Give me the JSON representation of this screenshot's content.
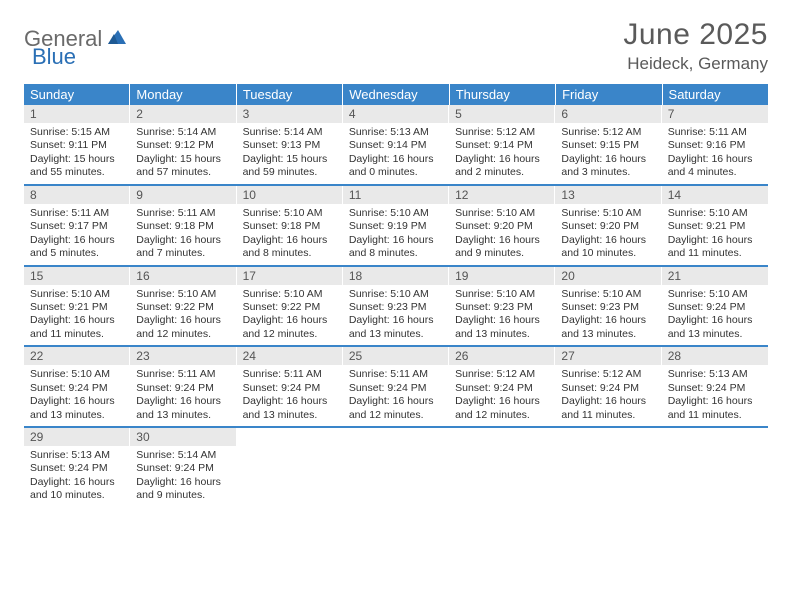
{
  "logo": {
    "text_left": "General",
    "text_right": "Blue"
  },
  "title": "June 2025",
  "location": "Heideck, Germany",
  "colors": {
    "header_bg": "#3a85c9",
    "daynum_bg": "#e9e9e9",
    "text_muted": "#5a5a5a",
    "logo_gray": "#6a6a6a",
    "logo_blue": "#2a6fb5"
  },
  "day_headers": [
    "Sunday",
    "Monday",
    "Tuesday",
    "Wednesday",
    "Thursday",
    "Friday",
    "Saturday"
  ],
  "weeks": [
    [
      {
        "n": "1",
        "sr": "5:15 AM",
        "ss": "9:11 PM",
        "dh": "15",
        "dm": "55"
      },
      {
        "n": "2",
        "sr": "5:14 AM",
        "ss": "9:12 PM",
        "dh": "15",
        "dm": "57"
      },
      {
        "n": "3",
        "sr": "5:14 AM",
        "ss": "9:13 PM",
        "dh": "15",
        "dm": "59"
      },
      {
        "n": "4",
        "sr": "5:13 AM",
        "ss": "9:14 PM",
        "dh": "16",
        "dm": "0"
      },
      {
        "n": "5",
        "sr": "5:12 AM",
        "ss": "9:14 PM",
        "dh": "16",
        "dm": "2"
      },
      {
        "n": "6",
        "sr": "5:12 AM",
        "ss": "9:15 PM",
        "dh": "16",
        "dm": "3"
      },
      {
        "n": "7",
        "sr": "5:11 AM",
        "ss": "9:16 PM",
        "dh": "16",
        "dm": "4"
      }
    ],
    [
      {
        "n": "8",
        "sr": "5:11 AM",
        "ss": "9:17 PM",
        "dh": "16",
        "dm": "5"
      },
      {
        "n": "9",
        "sr": "5:11 AM",
        "ss": "9:18 PM",
        "dh": "16",
        "dm": "7"
      },
      {
        "n": "10",
        "sr": "5:10 AM",
        "ss": "9:18 PM",
        "dh": "16",
        "dm": "8"
      },
      {
        "n": "11",
        "sr": "5:10 AM",
        "ss": "9:19 PM",
        "dh": "16",
        "dm": "8"
      },
      {
        "n": "12",
        "sr": "5:10 AM",
        "ss": "9:20 PM",
        "dh": "16",
        "dm": "9"
      },
      {
        "n": "13",
        "sr": "5:10 AM",
        "ss": "9:20 PM",
        "dh": "16",
        "dm": "10"
      },
      {
        "n": "14",
        "sr": "5:10 AM",
        "ss": "9:21 PM",
        "dh": "16",
        "dm": "11"
      }
    ],
    [
      {
        "n": "15",
        "sr": "5:10 AM",
        "ss": "9:21 PM",
        "dh": "16",
        "dm": "11"
      },
      {
        "n": "16",
        "sr": "5:10 AM",
        "ss": "9:22 PM",
        "dh": "16",
        "dm": "12"
      },
      {
        "n": "17",
        "sr": "5:10 AM",
        "ss": "9:22 PM",
        "dh": "16",
        "dm": "12"
      },
      {
        "n": "18",
        "sr": "5:10 AM",
        "ss": "9:23 PM",
        "dh": "16",
        "dm": "13"
      },
      {
        "n": "19",
        "sr": "5:10 AM",
        "ss": "9:23 PM",
        "dh": "16",
        "dm": "13"
      },
      {
        "n": "20",
        "sr": "5:10 AM",
        "ss": "9:23 PM",
        "dh": "16",
        "dm": "13"
      },
      {
        "n": "21",
        "sr": "5:10 AM",
        "ss": "9:24 PM",
        "dh": "16",
        "dm": "13"
      }
    ],
    [
      {
        "n": "22",
        "sr": "5:10 AM",
        "ss": "9:24 PM",
        "dh": "16",
        "dm": "13"
      },
      {
        "n": "23",
        "sr": "5:11 AM",
        "ss": "9:24 PM",
        "dh": "16",
        "dm": "13"
      },
      {
        "n": "24",
        "sr": "5:11 AM",
        "ss": "9:24 PM",
        "dh": "16",
        "dm": "13"
      },
      {
        "n": "25",
        "sr": "5:11 AM",
        "ss": "9:24 PM",
        "dh": "16",
        "dm": "12"
      },
      {
        "n": "26",
        "sr": "5:12 AM",
        "ss": "9:24 PM",
        "dh": "16",
        "dm": "12"
      },
      {
        "n": "27",
        "sr": "5:12 AM",
        "ss": "9:24 PM",
        "dh": "16",
        "dm": "11"
      },
      {
        "n": "28",
        "sr": "5:13 AM",
        "ss": "9:24 PM",
        "dh": "16",
        "dm": "11"
      }
    ],
    [
      {
        "n": "29",
        "sr": "5:13 AM",
        "ss": "9:24 PM",
        "dh": "16",
        "dm": "10"
      },
      {
        "n": "30",
        "sr": "5:14 AM",
        "ss": "9:24 PM",
        "dh": "16",
        "dm": "9"
      },
      null,
      null,
      null,
      null,
      null
    ]
  ],
  "labels": {
    "sunrise": "Sunrise:",
    "sunset": "Sunset:",
    "daylight": "Daylight:",
    "hours_word": "hours",
    "and_word": "and",
    "minutes_word": "minutes."
  }
}
